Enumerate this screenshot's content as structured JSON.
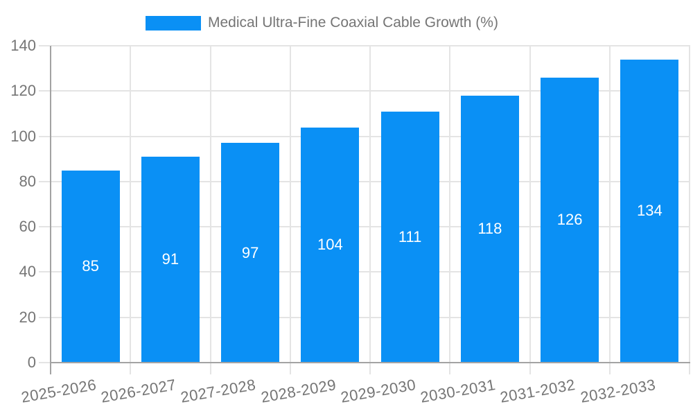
{
  "chart_data": {
    "type": "bar",
    "title": "Medical Ultra-Fine Coaxial Cable Growth (%)",
    "categories": [
      "2025-2026",
      "2026-2027",
      "2027-2028",
      "2028-2029",
      "2029-2030",
      "2030-2031",
      "2031-2032",
      "2032-2033"
    ],
    "series": [
      {
        "name": "Medical Ultra-Fine Coaxial Cable Growth (%)",
        "values": [
          85,
          91,
          97,
          104,
          111,
          118,
          126,
          134
        ]
      }
    ],
    "value_labels": [
      "85",
      "91",
      "97",
      "104",
      "111",
      "118",
      "126",
      "134"
    ],
    "value_label_position": "center",
    "xlabel": "",
    "ylabel": "",
    "ylim": [
      0,
      140
    ],
    "yticks": [
      0,
      20,
      40,
      60,
      80,
      100,
      120,
      140
    ],
    "ytick_labels": [
      "0",
      "20",
      "40",
      "60",
      "80",
      "100",
      "120",
      "140"
    ],
    "grid": true,
    "legend_position": "top",
    "x_label_rotation_deg": -10,
    "colors": {
      "bar": "#0a90f5",
      "grid": "#e4e4e4",
      "axis": "#a3a3a3",
      "label": "#757575",
      "value_label": "#ffffff",
      "background": "#ffffff"
    }
  }
}
